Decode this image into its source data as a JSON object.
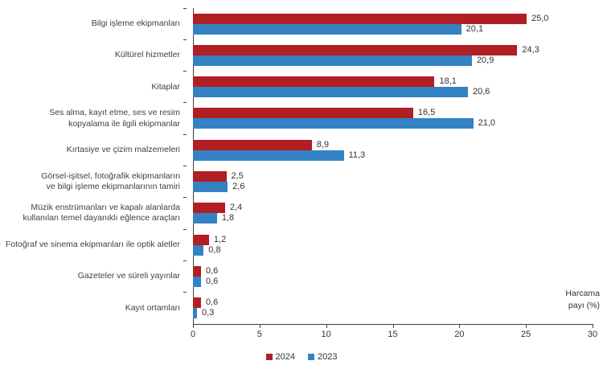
{
  "chart_data": {
    "type": "bar",
    "orientation": "horizontal",
    "title": "",
    "xlabel": "Harcama payı (%)",
    "ylabel": "",
    "xlim": [
      0,
      30
    ],
    "xticks": [
      0,
      5,
      10,
      15,
      20,
      25,
      30
    ],
    "grid": false,
    "legend_position": "bottom-center",
    "decimal_separator": ",",
    "categories": [
      "Bilgi işleme ekipmanları",
      "Kültürel hizmetler",
      "Kitaplar",
      "Ses alma, kayıt etme, ses ve resim\nkopyalama ile ilgili ekipmanlar",
      "Kırtasiye ve çizim malzemeleri",
      "Görsel-işitsel, fotoğrafik ekipmanların\nve bilgi işleme ekipmanlarının tamiri",
      "Müzik enstrümanları ve kapalı alanlarda\nkullanılan temel dayanıklı eğlence araçları",
      "Fotoğraf ve sinema ekipmanları ile optik aletler",
      "Gazeteler ve süreli yayınlar",
      "Kayıt ortamları"
    ],
    "series": [
      {
        "name": "2024",
        "color": "#b11e24",
        "values": [
          25.0,
          24.3,
          18.1,
          16.5,
          8.9,
          2.5,
          2.4,
          1.2,
          0.6,
          0.6
        ]
      },
      {
        "name": "2023",
        "color": "#3382c4",
        "values": [
          20.1,
          20.9,
          20.6,
          21.0,
          11.3,
          2.6,
          1.8,
          0.8,
          0.6,
          0.3
        ]
      }
    ]
  }
}
